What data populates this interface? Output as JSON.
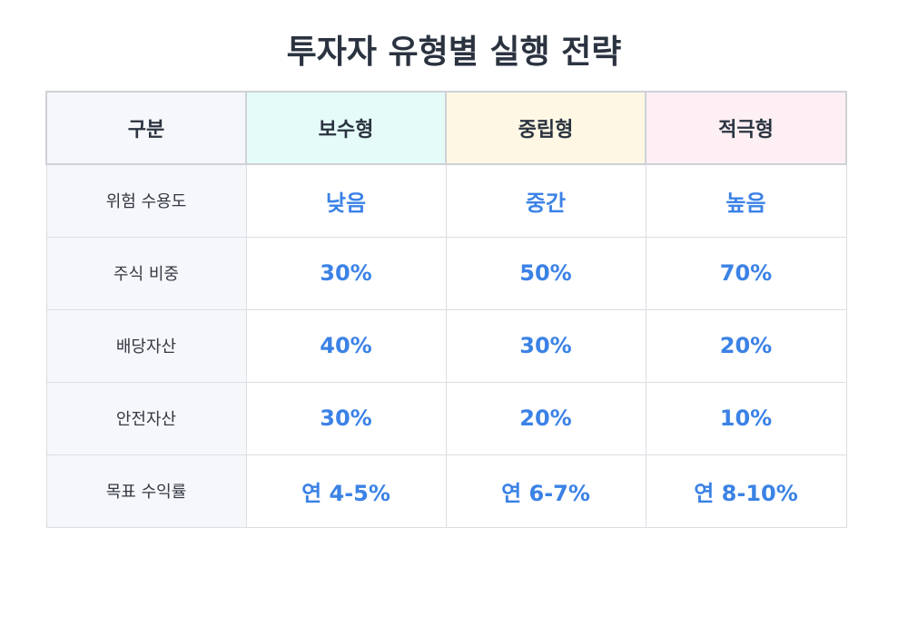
{
  "title": "투자자 유형별 실행 전략",
  "table": {
    "headers": [
      "구분",
      "보수형",
      "중립형",
      "적극형"
    ],
    "header_colors": [
      "#f6f7fa",
      "#e5fbf8",
      "#fdf7e4",
      "#fdeff3"
    ],
    "accent_color": "#3b82e6",
    "rows": [
      {
        "label": "위험 수용도",
        "values": [
          "낮음",
          "중간",
          "높음"
        ]
      },
      {
        "label": "주식 비중",
        "values": [
          "30%",
          "50%",
          "70%"
        ]
      },
      {
        "label": "배당자산",
        "values": [
          "40%",
          "30%",
          "20%"
        ]
      },
      {
        "label": "안전자산",
        "values": [
          "30%",
          "20%",
          "10%"
        ]
      },
      {
        "label": "목표 수익률",
        "values": [
          "연 4-5%",
          "연 6-7%",
          "연 8-10%"
        ]
      }
    ]
  }
}
